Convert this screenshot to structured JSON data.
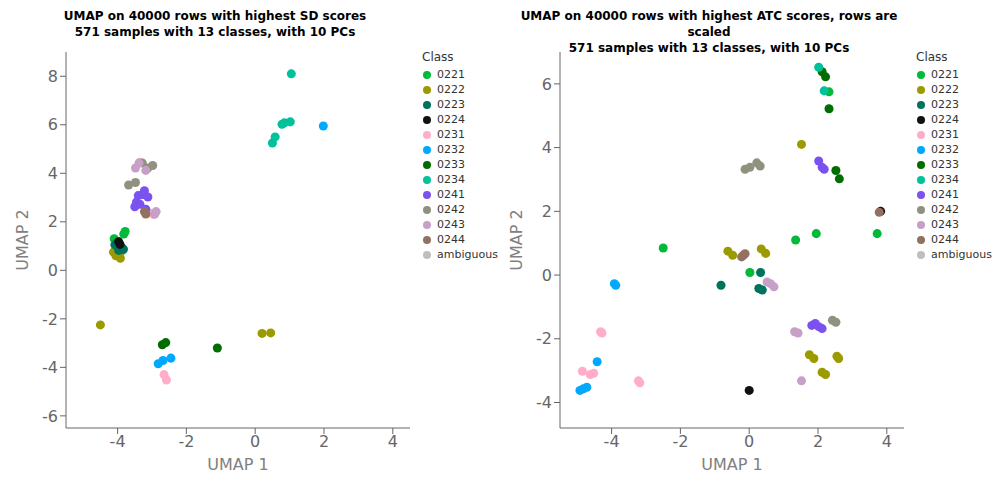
{
  "chart_data": [
    {
      "type": "scatter",
      "title": "UMAP on 40000 rows with highest SD scores\n571 samples with 13 classes, with 10 PCs",
      "x_label": "UMAP 1",
      "y_label": "UMAP 2",
      "xlim": [
        -5.5,
        4.5
      ],
      "ylim": [
        -6.5,
        9.0
      ],
      "xticks": [
        -4,
        -2,
        0,
        2,
        4
      ],
      "yticks": [
        -6,
        -4,
        -2,
        0,
        2,
        4,
        6,
        8
      ],
      "grid": false,
      "legend": "right",
      "legend_title": "Class",
      "series": [
        {
          "name": "0221",
          "color": "#00BA38",
          "x": [
            -4.1,
            -4.05,
            -4.0,
            -3.95,
            -3.88,
            -3.82,
            -3.78
          ],
          "y": [
            1.3,
            1.15,
            1.2,
            0.85,
            0.8,
            1.5,
            1.6
          ]
        },
        {
          "name": "0222",
          "color": "#9B9B00",
          "x": [
            -4.5,
            -4.12,
            -4.05,
            -3.98,
            -3.92,
            0.2,
            0.45
          ],
          "y": [
            -2.25,
            0.75,
            0.6,
            0.7,
            0.5,
            -2.6,
            -2.58
          ]
        },
        {
          "name": "0223",
          "color": "#00735C",
          "x": [
            -4.08,
            -4.02,
            -3.97,
            -3.93,
            -3.87,
            -3.83
          ],
          "y": [
            1.05,
            1.12,
            0.82,
            1.02,
            0.92,
            0.87
          ]
        },
        {
          "name": "0224",
          "color": "#111111",
          "x": [
            -3.97,
            -3.93
          ],
          "y": [
            1.18,
            1.07
          ]
        },
        {
          "name": "0231",
          "color": "#FFADC9",
          "x": [
            -3.35,
            -3.0,
            -2.95,
            -2.65,
            -2.58
          ],
          "y": [
            4.45,
            2.35,
            2.3,
            -4.3,
            -4.52
          ]
        },
        {
          "name": "0232",
          "color": "#00A9FF",
          "x": [
            -2.82,
            -2.68,
            -2.45,
            1.98
          ],
          "y": [
            -3.85,
            -3.72,
            -3.62,
            5.95
          ]
        },
        {
          "name": "0233",
          "color": "#006D00",
          "x": [
            -2.7,
            -2.6,
            -1.1
          ],
          "y": [
            -3.07,
            -2.98,
            -3.2
          ]
        },
        {
          "name": "0234",
          "color": "#00C19A",
          "x": [
            0.5,
            0.58,
            0.78,
            0.85,
            1.02,
            1.05
          ],
          "y": [
            5.25,
            5.5,
            6.02,
            6.08,
            6.12,
            8.1
          ]
        },
        {
          "name": "0241",
          "color": "#7B52F0",
          "x": [
            -3.5,
            -3.45,
            -3.4,
            -3.35,
            -3.28,
            -3.22,
            -3.18,
            -3.12
          ],
          "y": [
            2.62,
            2.82,
            3.08,
            2.72,
            3.12,
            3.28,
            2.52,
            3.02
          ]
        },
        {
          "name": "0242",
          "color": "#919180",
          "x": [
            -3.68,
            -3.48,
            -3.28,
            -3.12,
            -2.98
          ],
          "y": [
            3.52,
            3.62,
            4.42,
            4.22,
            4.32
          ]
        },
        {
          "name": "0243",
          "color": "#C7A0C8",
          "x": [
            -3.48,
            -3.38,
            -3.18,
            -2.92,
            -2.88
          ],
          "y": [
            4.22,
            4.42,
            4.12,
            2.32,
            2.42
          ]
        },
        {
          "name": "0244",
          "color": "#947060",
          "x": [
            -3.22,
            -3.18
          ],
          "y": [
            2.42,
            2.32
          ]
        },
        {
          "name": "ambiguous",
          "color": "#BEBEBE",
          "x": [],
          "y": []
        }
      ]
    },
    {
      "type": "scatter",
      "title": "UMAP on 40000 rows with highest ATC scores, rows are scaled\n571 samples with 13 classes, with 10 PCs",
      "x_label": "UMAP 1",
      "y_label": "UMAP 2",
      "xlim": [
        -5.5,
        4.5
      ],
      "ylim": [
        -4.8,
        7.0
      ],
      "xticks": [
        -4,
        -2,
        0,
        2,
        4
      ],
      "yticks": [
        -4,
        -2,
        0,
        2,
        4,
        6
      ],
      "grid": false,
      "legend": "right",
      "legend_title": "Class",
      "series": [
        {
          "name": "0221",
          "color": "#00BA38",
          "x": [
            -2.5,
            0.02,
            1.35,
            1.95,
            2.32,
            3.72
          ],
          "y": [
            0.85,
            0.08,
            1.1,
            1.3,
            5.75,
            1.3
          ]
        },
        {
          "name": "0222",
          "color": "#9B9B00",
          "x": [
            -0.62,
            -0.48,
            0.35,
            0.48,
            1.52,
            1.75,
            1.88,
            2.12,
            2.22,
            2.55,
            2.6
          ],
          "y": [
            0.75,
            0.62,
            0.82,
            0.68,
            4.1,
            -2.5,
            -2.62,
            -3.05,
            -3.12,
            -2.55,
            -2.62
          ]
        },
        {
          "name": "0223",
          "color": "#00735C",
          "x": [
            0.28,
            0.38,
            0.33,
            -0.82
          ],
          "y": [
            -0.42,
            -0.47,
            0.08,
            -0.32
          ]
        },
        {
          "name": "0224",
          "color": "#111111",
          "x": [
            0.0,
            3.82
          ],
          "y": [
            -3.62,
            2.0
          ]
        },
        {
          "name": "0231",
          "color": "#FFADC9",
          "x": [
            -4.85,
            -4.62,
            -4.52,
            -4.32,
            -4.28,
            -3.22,
            -3.18
          ],
          "y": [
            -3.02,
            -3.12,
            -3.08,
            -1.78,
            -1.82,
            -3.32,
            -3.38
          ]
        },
        {
          "name": "0232",
          "color": "#00A9FF",
          "x": [
            -4.92,
            -4.82,
            -4.72,
            -4.42,
            -3.92,
            -3.88
          ],
          "y": [
            -3.62,
            -3.57,
            -3.52,
            -2.72,
            -0.27,
            -0.32
          ]
        },
        {
          "name": "0233",
          "color": "#006D00",
          "x": [
            2.12,
            2.22,
            2.32,
            2.52,
            2.62
          ],
          "y": [
            6.38,
            6.22,
            5.22,
            3.28,
            3.02
          ]
        },
        {
          "name": "0234",
          "color": "#00C19A",
          "x": [
            2.02,
            2.18
          ],
          "y": [
            6.52,
            5.78
          ]
        },
        {
          "name": "0241",
          "color": "#7B52F0",
          "x": [
            2.02,
            2.12,
            2.18,
            1.82,
            1.92,
            2.02,
            2.12
          ],
          "y": [
            3.58,
            3.38,
            3.32,
            -1.58,
            -1.52,
            -1.62,
            -1.68
          ]
        },
        {
          "name": "0242",
          "color": "#919180",
          "x": [
            -0.12,
            0.02,
            0.22,
            0.32,
            2.42,
            2.52
          ],
          "y": [
            3.32,
            3.38,
            3.52,
            3.42,
            -1.42,
            -1.48
          ]
        },
        {
          "name": "0243",
          "color": "#C7A0C8",
          "x": [
            0.52,
            0.62,
            0.72,
            1.32,
            1.42,
            1.52
          ],
          "y": [
            -0.22,
            -0.27,
            -0.37,
            -1.78,
            -1.82,
            -3.32
          ]
        },
        {
          "name": "0244",
          "color": "#947060",
          "x": [
            -0.22,
            -0.17,
            -0.12,
            3.78
          ],
          "y": [
            0.57,
            0.62,
            0.67,
            1.97
          ]
        },
        {
          "name": "ambiguous",
          "color": "#BEBEBE",
          "x": [],
          "y": []
        }
      ]
    }
  ]
}
